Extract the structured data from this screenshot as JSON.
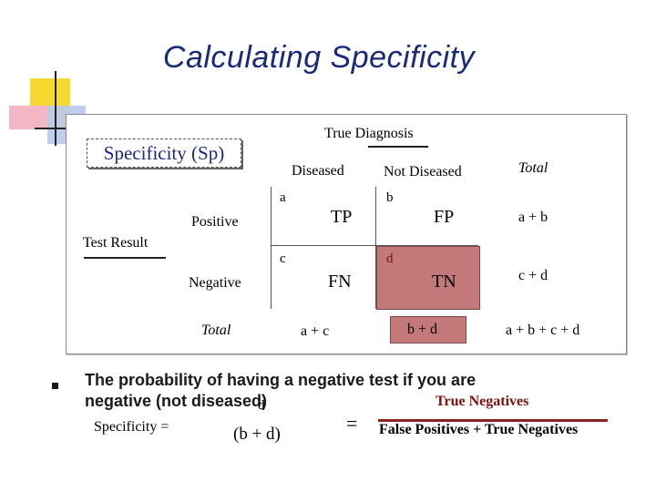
{
  "title": "Calculating Specificity",
  "spec_box": "Specificity (Sp)",
  "table": {
    "true_diagnosis": "True Diagnosis",
    "diseased": "Diseased",
    "not_diseased": "Not Diseased",
    "total_header": "Total",
    "test_result": "Test Result",
    "positive": "Positive",
    "negative": "Negative",
    "total_row": "Total",
    "cell_a": "a",
    "cell_b": "b",
    "cell_c": "c",
    "cell_d": "d",
    "tp": "TP",
    "fp": "FP",
    "fn": "FN",
    "tn": "TN",
    "row1_total": "a + b",
    "row2_total": "c + d",
    "col1_total": "a + c",
    "col2_total": "b + d",
    "grand_total": "a + b + c + d"
  },
  "bullet": {
    "line1": "The probability of having a negative test if you are",
    "line2": "negative (not diseased)"
  },
  "formula": {
    "label": "Specificity  =",
    "d": "d",
    "denominator": "(b + d)",
    "equals": "=",
    "numerator": "True Negatives",
    "denominator_words": "False Positives + True Negatives"
  },
  "colors": {
    "title": "#1a2a7a",
    "highlight": "#c3797a",
    "fraction_line": "#8b2323"
  }
}
